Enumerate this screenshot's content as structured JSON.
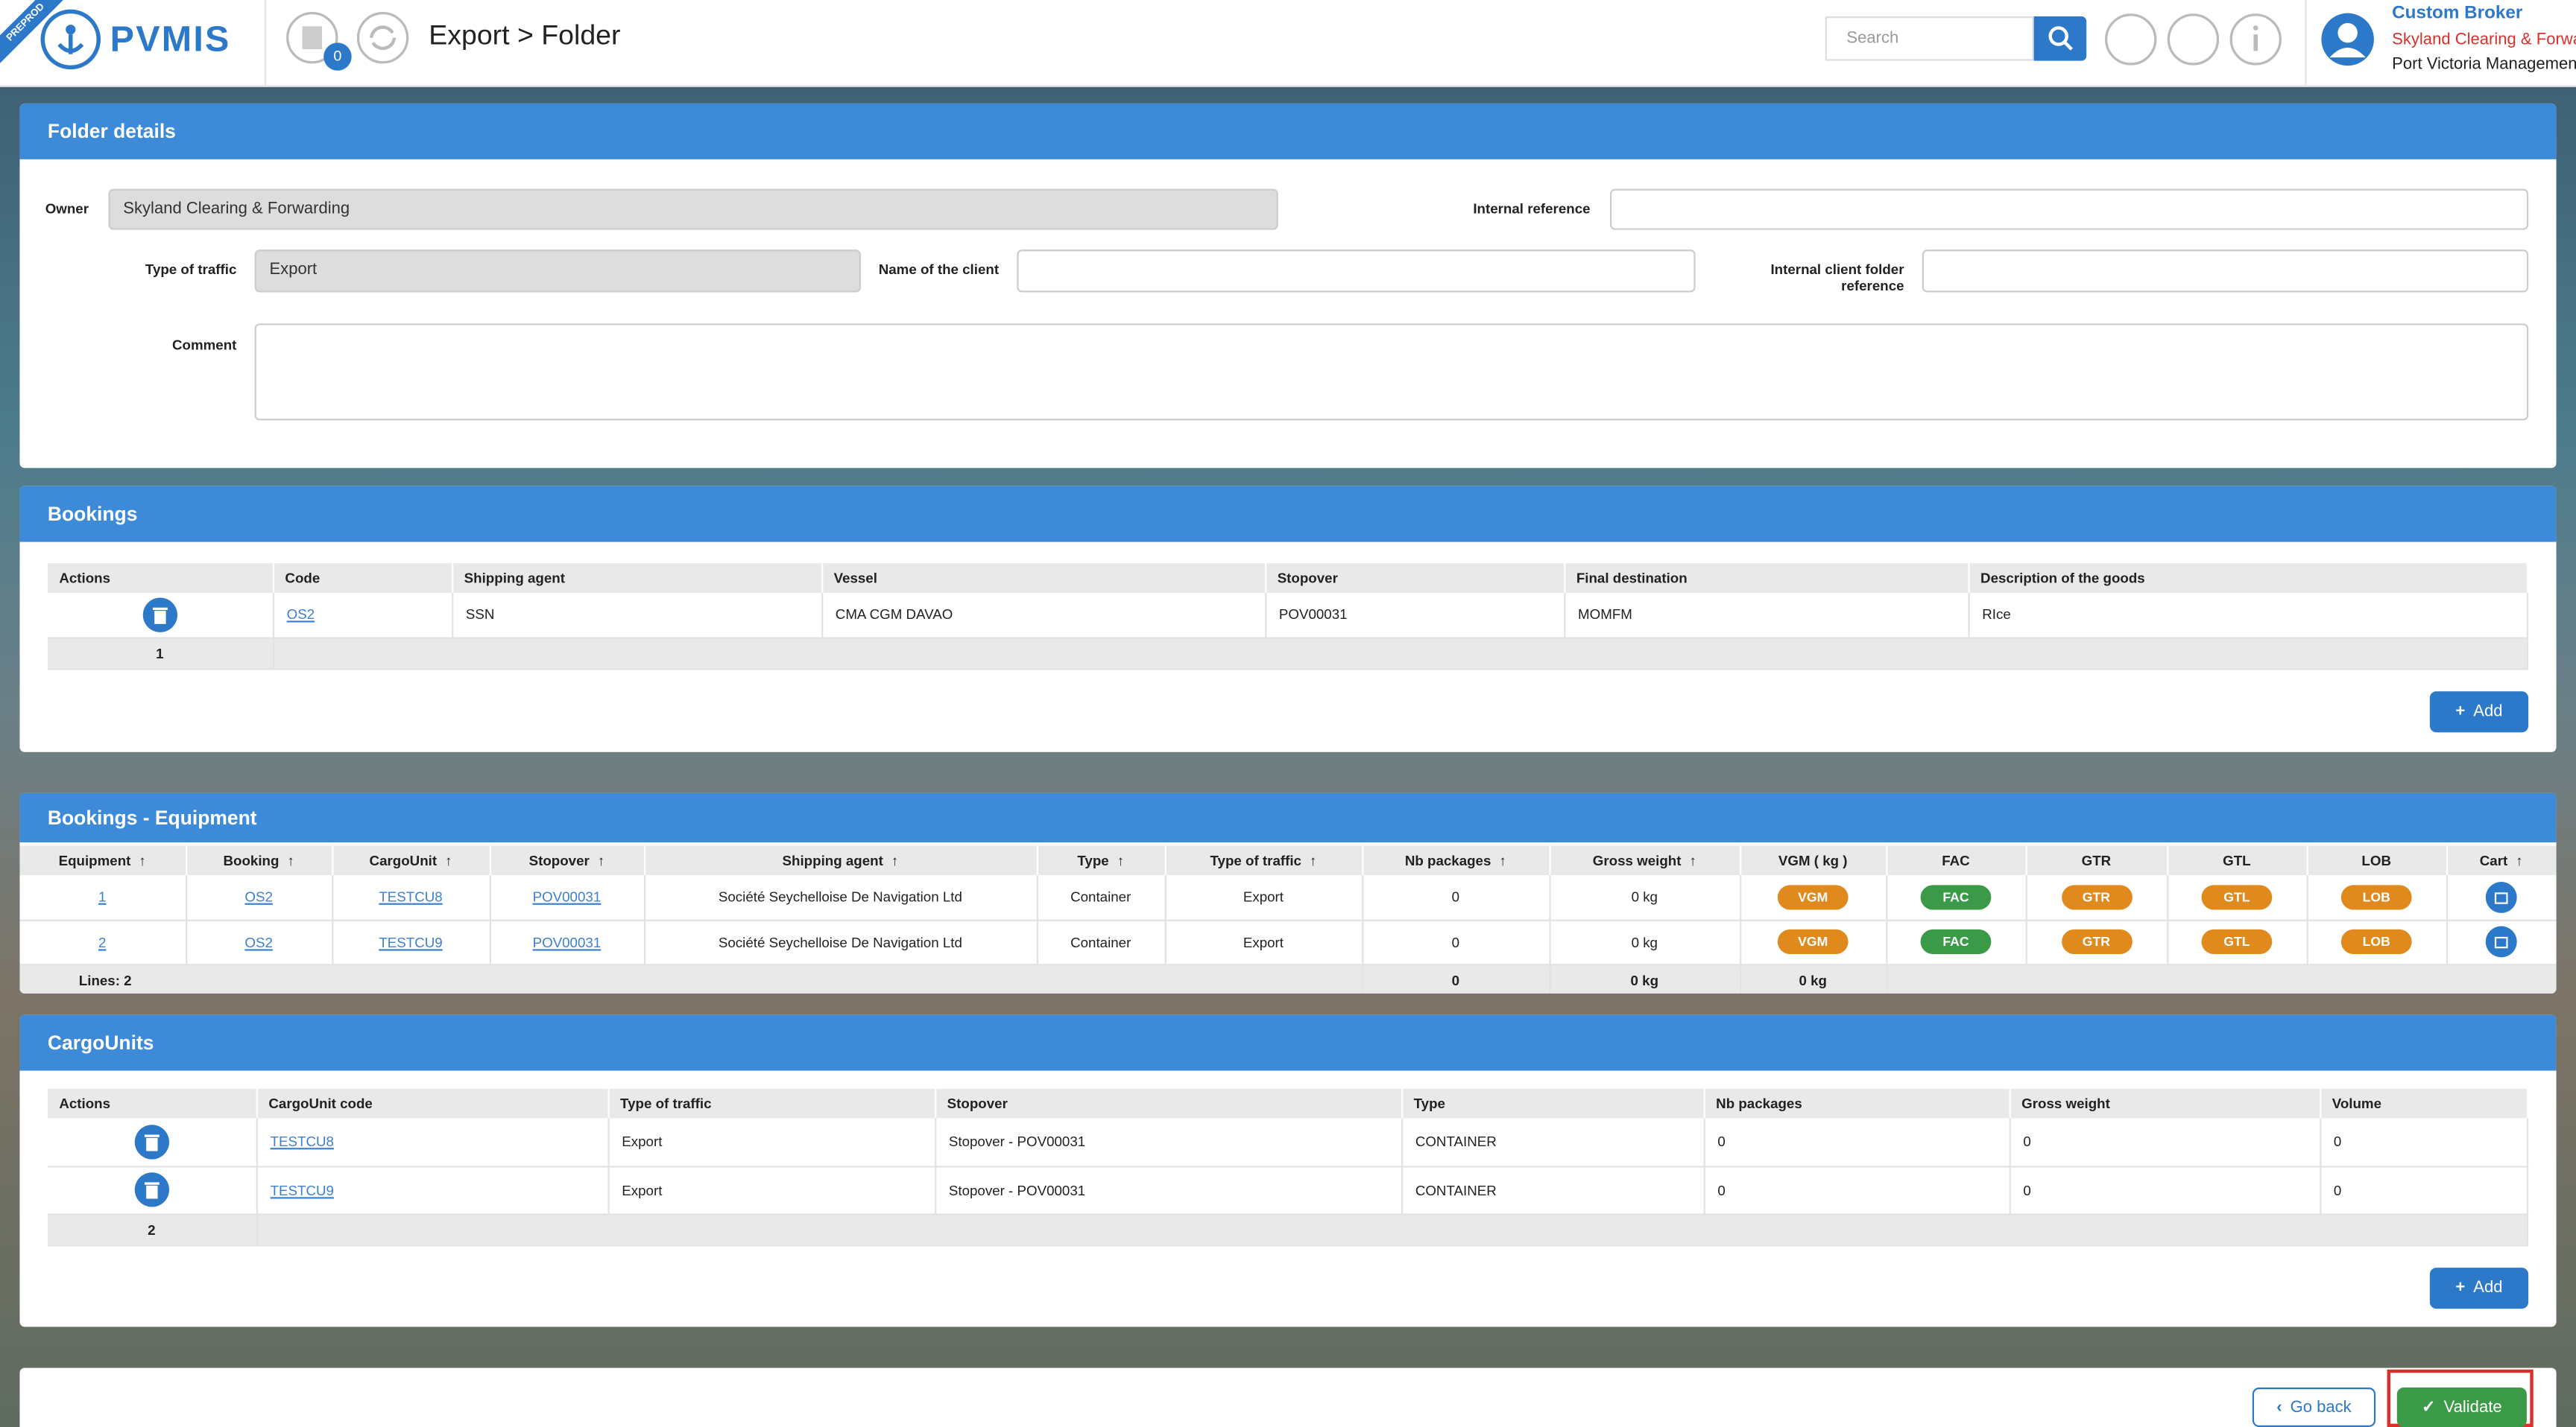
{
  "header": {
    "badge": "PREPROD",
    "logo": "PVMIS",
    "notification_count": "0",
    "title": "Export > Folder",
    "search_placeholder": "Search",
    "user_role": "Custom Broker",
    "user_company": "Skyland Clearing & Forwarding",
    "user_org": "Port Victoria Management"
  },
  "folder_details": {
    "title": "Folder details",
    "owner_label": "Owner",
    "owner_value": "Skyland Clearing & Forwarding",
    "internal_reference_label": "Internal reference",
    "type_of_traffic_label": "Type of traffic",
    "type_of_traffic_value": "Export",
    "client_name_label": "Name of the client",
    "internal_client_ref_label": "Internal client folder reference",
    "comment_label": "Comment"
  },
  "bookings": {
    "title": "Bookings",
    "columns": [
      "Actions",
      "Code",
      "Shipping agent",
      "Vessel",
      "Stopover",
      "Final destination",
      "Description of the goods"
    ],
    "rows": [
      [
        "OS2",
        "SSN",
        "CMA CGM DAVAO",
        "POV00031",
        "MOMFM",
        "RIce"
      ]
    ],
    "footer": "1",
    "add_button": "Add"
  },
  "equipment": {
    "title": "Bookings - Equipment",
    "columns": [
      "Equipment",
      "Booking",
      "CargoUnit",
      "Stopover",
      "Shipping agent",
      "Type",
      "Type of traffic",
      "Nb packages",
      "Gross weight",
      "VGM ( kg )",
      "FAC",
      "GTR",
      "GTL",
      "LOB",
      "Cart"
    ],
    "badges": [
      "VGM",
      "FAC",
      "GTR",
      "GTL",
      "LOB"
    ],
    "rows": [
      [
        "1",
        "OS2",
        "TESTCU8",
        "POV00031",
        "Société Seychelloise De Navigation Ltd",
        "Container",
        "Export",
        "0",
        "0 kg"
      ],
      [
        "2",
        "OS2",
        "TESTCU9",
        "POV00031",
        "Société Seychelloise De Navigation Ltd",
        "Container",
        "Export",
        "0",
        "0 kg"
      ]
    ],
    "footer": {
      "lines": "Lines: 2",
      "nb_packages": "0",
      "gross_weight": "0 kg",
      "vgm": "0 kg"
    }
  },
  "cargo_units": {
    "title": "CargoUnits",
    "columns": [
      "Actions",
      "CargoUnit code",
      "Type of traffic",
      "Stopover",
      "Type",
      "Nb packages",
      "Gross weight",
      "Volume"
    ],
    "rows": [
      [
        "TESTCU8",
        "Export",
        "Stopover - POV00031",
        "CONTAINER",
        "0",
        "0",
        "0"
      ],
      [
        "TESTCU9",
        "Export",
        "Stopover - POV00031",
        "CONTAINER",
        "0",
        "0",
        "0"
      ]
    ],
    "footer": "2",
    "add_button": "Add"
  },
  "actions": {
    "go_back": "Go back",
    "validate": "Validate"
  }
}
